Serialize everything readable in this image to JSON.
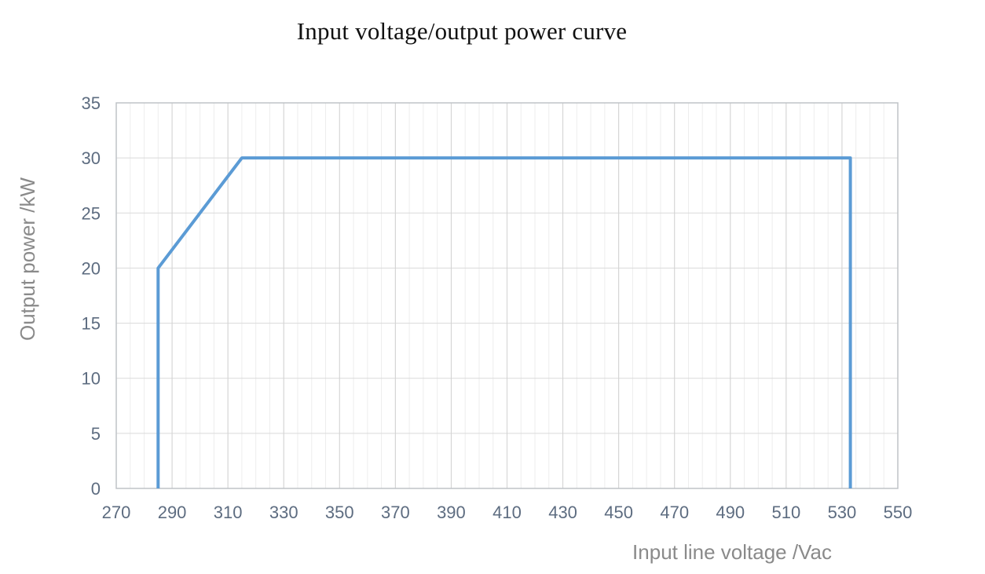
{
  "page": {
    "background": "#ffffff"
  },
  "chart_data": {
    "type": "line",
    "title": "Input voltage/output power curve",
    "xlabel": "Input line voltage /Vac",
    "ylabel": "Output power /kW",
    "xlim": [
      270,
      550
    ],
    "ylim": [
      0,
      35
    ],
    "x_ticks": [
      270,
      290,
      310,
      330,
      350,
      370,
      390,
      410,
      430,
      450,
      470,
      490,
      510,
      530,
      550
    ],
    "y_ticks": [
      0,
      5,
      10,
      15,
      20,
      25,
      30,
      35
    ],
    "x_tick_step": 20,
    "x_minor_step": 5,
    "y_tick_step": 5,
    "grid": true,
    "legend": "none",
    "series": [
      {
        "points": [
          [
            285,
            0
          ],
          [
            285,
            20
          ],
          [
            315,
            30
          ],
          [
            533,
            30
          ],
          [
            533,
            0
          ]
        ],
        "color": "#5B9BD5",
        "width": 4
      }
    ],
    "colors": {
      "line": "#5B9BD5",
      "grid_minor": "#ededed",
      "grid_major": "#d2d2d2",
      "grid_horizontal": "#dadada",
      "plot_border": "#bfc3c7",
      "tick_label": "#5d6c80",
      "axis_title": "#8a8a8a",
      "title": "#111111"
    }
  }
}
